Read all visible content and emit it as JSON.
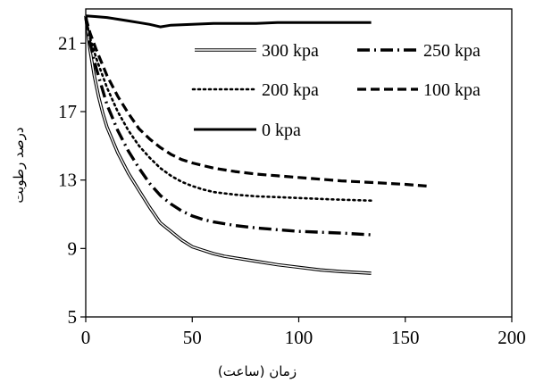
{
  "chart_data": {
    "type": "line",
    "xlabel": "زمان (ساعت)",
    "ylabel": "درصد رطوبت",
    "xlim": [
      0,
      200
    ],
    "ylim": [
      5,
      23
    ],
    "xticks": [
      0,
      50,
      100,
      150,
      200
    ],
    "yticks": [
      5,
      9,
      13,
      17,
      21
    ],
    "x_tick_labels": [
      "0",
      "50",
      "100",
      "150",
      "200"
    ],
    "y_tick_labels": [
      "5",
      "9",
      "13",
      "17",
      "21"
    ],
    "grid": false,
    "legend_position": "top-right",
    "series": [
      {
        "name": "300 kpa",
        "style": "double",
        "x": [
          0,
          1,
          2,
          4,
          6,
          8,
          10,
          15,
          20,
          25,
          30,
          35,
          40,
          45,
          50,
          55,
          60,
          65,
          70,
          80,
          90,
          100,
          110,
          120,
          134
        ],
        "y": [
          22.6,
          21.6,
          20.6,
          19.1,
          17.9,
          16.9,
          16.1,
          14.6,
          13.4,
          12.4,
          11.4,
          10.5,
          10.0,
          9.5,
          9.1,
          8.9,
          8.7,
          8.55,
          8.45,
          8.25,
          8.05,
          7.9,
          7.75,
          7.65,
          7.55
        ]
      },
      {
        "name": "250 kpa",
        "style": "dashdot",
        "x": [
          0,
          2,
          5,
          10,
          15,
          20,
          25,
          30,
          35,
          40,
          45,
          50,
          55,
          60,
          70,
          80,
          90,
          100,
          110,
          120,
          134
        ],
        "y": [
          22.5,
          21.0,
          19.5,
          17.4,
          15.9,
          14.7,
          13.7,
          12.8,
          12.1,
          11.6,
          11.2,
          10.9,
          10.7,
          10.55,
          10.35,
          10.2,
          10.1,
          10.0,
          9.95,
          9.9,
          9.8
        ]
      },
      {
        "name": "200 kpa",
        "style": "dotted",
        "x": [
          0,
          2,
          5,
          10,
          15,
          20,
          25,
          30,
          35,
          40,
          45,
          50,
          55,
          60,
          70,
          80,
          90,
          100,
          110,
          120,
          134
        ],
        "y": [
          22.5,
          21.3,
          20.1,
          18.4,
          17.0,
          15.9,
          15.0,
          14.3,
          13.7,
          13.25,
          12.9,
          12.65,
          12.45,
          12.3,
          12.15,
          12.05,
          12.0,
          11.95,
          11.9,
          11.85,
          11.8
        ]
      },
      {
        "name": "100 kpa",
        "style": "dashed",
        "x": [
          0,
          2,
          5,
          10,
          15,
          20,
          25,
          30,
          35,
          40,
          45,
          50,
          55,
          60,
          70,
          80,
          90,
          100,
          110,
          120,
          135,
          150,
          160
        ],
        "y": [
          22.5,
          21.6,
          20.6,
          19.1,
          17.9,
          16.9,
          16.0,
          15.4,
          14.9,
          14.5,
          14.2,
          14.0,
          13.85,
          13.7,
          13.5,
          13.35,
          13.25,
          13.15,
          13.05,
          12.95,
          12.85,
          12.75,
          12.65
        ]
      },
      {
        "name": "0 kpa",
        "style": "solid",
        "x": [
          0,
          5,
          10,
          15,
          20,
          25,
          30,
          35,
          40,
          50,
          60,
          70,
          80,
          90,
          100,
          110,
          120,
          134
        ],
        "y": [
          22.6,
          22.55,
          22.5,
          22.4,
          22.3,
          22.2,
          22.1,
          21.95,
          22.05,
          22.1,
          22.15,
          22.15,
          22.15,
          22.2,
          22.2,
          22.2,
          22.2,
          22.2
        ]
      }
    ]
  }
}
